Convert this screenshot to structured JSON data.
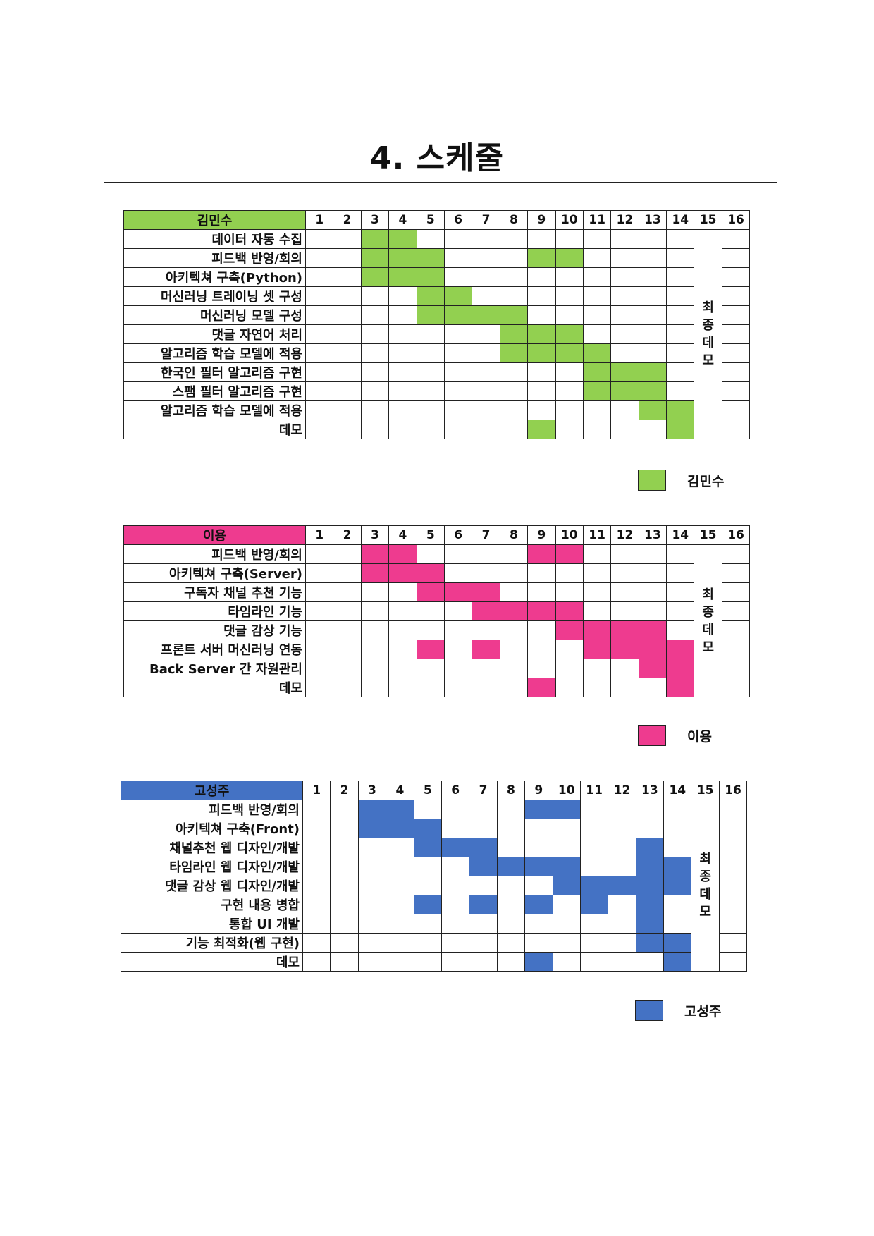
{
  "page": {
    "title": "4.  스케줄"
  },
  "week_labels": [
    "1",
    "2",
    "3",
    "4",
    "5",
    "6",
    "7",
    "8",
    "9",
    "10",
    "11",
    "12",
    "13",
    "14",
    "15",
    "16"
  ],
  "final_demo_label": "최종데모",
  "sections": [
    {
      "name": "김민수",
      "color": "#92d050",
      "legend_label": "김민수",
      "tasks": [
        {
          "label": "데이터 자동 수집",
          "weeks": [
            3,
            4
          ]
        },
        {
          "label": "피드백 반영/회의",
          "weeks": [
            3,
            4,
            5,
            9,
            10
          ]
        },
        {
          "label": "아키텍쳐 구축(Python)",
          "weeks": [
            3,
            4,
            5
          ]
        },
        {
          "label": "머신러닝 트레이닝 셋 구성",
          "weeks": [
            5,
            6
          ]
        },
        {
          "label": "머신러닝 모델  구성",
          "weeks": [
            5,
            6,
            7,
            8
          ]
        },
        {
          "label": "댓글 자연어 처리",
          "weeks": [
            8,
            9,
            10
          ]
        },
        {
          "label": "알고리즘 학습 모델에 적용",
          "weeks": [
            8,
            9,
            10,
            11
          ]
        },
        {
          "label": "한국인 필터 알고리즘 구현",
          "weeks": [
            11,
            12,
            13
          ]
        },
        {
          "label": "스팸 필터 알고리즘 구현",
          "weeks": [
            11,
            12,
            13
          ]
        },
        {
          "label": "알고리즘 학습 모델에 적용",
          "weeks": [
            13,
            14
          ]
        },
        {
          "label": "데모",
          "weeks": [
            9,
            14
          ]
        }
      ]
    },
    {
      "name": "이용",
      "color": "#ee3b8f",
      "legend_label": "이용",
      "tasks": [
        {
          "label": "피드백 반영/회의",
          "weeks": [
            3,
            4,
            9,
            10
          ]
        },
        {
          "label": "아키텍쳐 구축(Server)",
          "weeks": [
            3,
            4,
            5
          ]
        },
        {
          "label": "구독자 채널 추천 기능",
          "weeks": [
            5,
            6,
            7
          ]
        },
        {
          "label": "타임라인 기능",
          "weeks": [
            7,
            8,
            9,
            10
          ]
        },
        {
          "label": "댓글 감상 기능",
          "weeks": [
            10,
            11,
            12,
            13
          ]
        },
        {
          "label": "프론트 서버 머신러닝 연동",
          "weeks": [
            5,
            7,
            11,
            12,
            13,
            14
          ]
        },
        {
          "label": "Back Server 간 자원관리",
          "weeks": [
            13,
            14
          ]
        },
        {
          "label": "데모",
          "weeks": [
            9,
            14
          ]
        }
      ]
    },
    {
      "name": "고성주",
      "color": "#4472c4",
      "legend_label": "고성주",
      "tasks": [
        {
          "label": "피드백 반영/회의",
          "weeks": [
            3,
            4,
            9,
            10
          ]
        },
        {
          "label": "아키텍쳐 구축(Front)",
          "weeks": [
            3,
            4,
            5
          ]
        },
        {
          "label": "채널추천 웹 디자인/개발",
          "weeks": [
            5,
            6,
            7,
            13
          ]
        },
        {
          "label": "타임라인 웹 디자인/개발",
          "weeks": [
            7,
            8,
            9,
            10,
            13,
            14
          ]
        },
        {
          "label": "댓글 감상 웹 디자인/개발",
          "weeks": [
            10,
            11,
            12,
            13,
            14
          ]
        },
        {
          "label": "구현 내용 병합",
          "weeks": [
            5,
            7,
            9,
            11,
            13
          ]
        },
        {
          "label": "통합 UI 개발",
          "weeks": [
            13
          ]
        },
        {
          "label": "기능 최적화(웹 구현)",
          "weeks": [
            13,
            14
          ]
        },
        {
          "label": "데모",
          "weeks": [
            9,
            14
          ]
        }
      ]
    }
  ]
}
